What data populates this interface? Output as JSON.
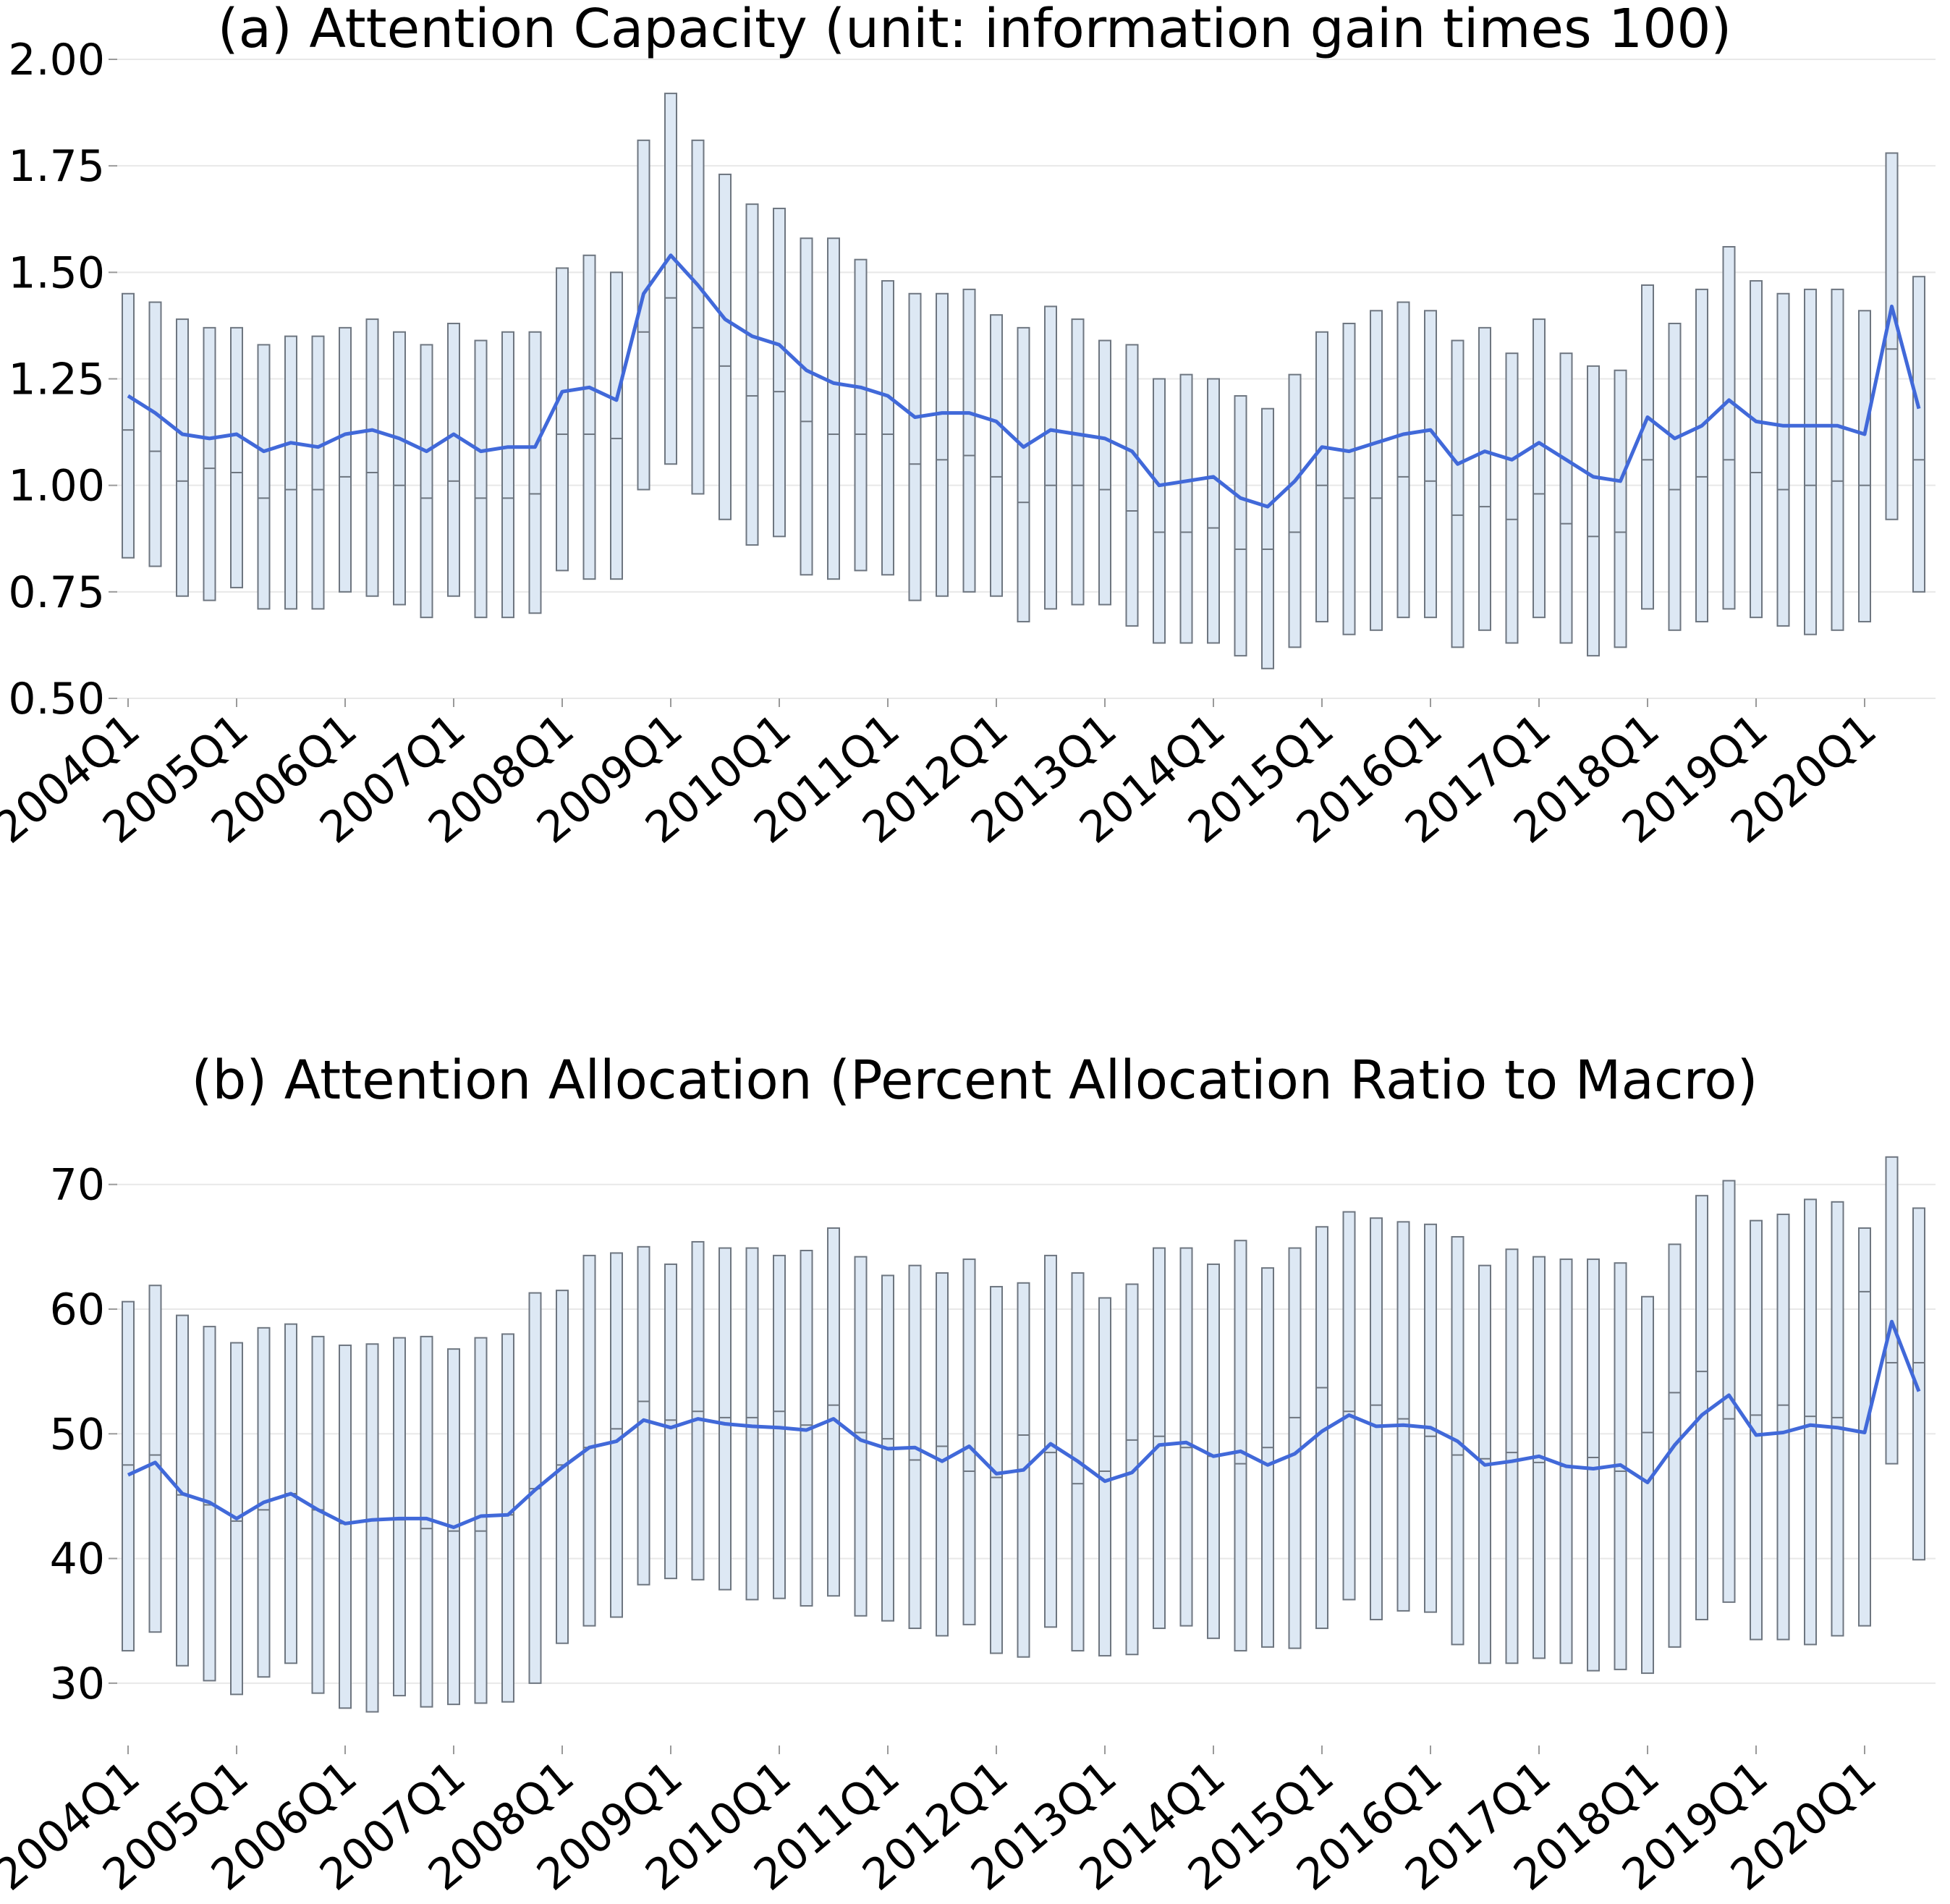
{
  "colors": {
    "mean_line": "#4169D9",
    "box_fill": "#DDE8F4",
    "box_edge": "#6E7680",
    "grid": "#E8E8E8",
    "tick": "#9A9A9A"
  },
  "chart_data": [
    {
      "type": "box",
      "title": "(a) Attention Capacity (unit: information gain times 100)",
      "xlabel": "",
      "ylabel": "",
      "ylim": [
        0.5,
        2.0
      ],
      "yticks": [
        0.5,
        0.75,
        1.0,
        1.25,
        1.5,
        1.75,
        2.0
      ],
      "ytick_labels": [
        "0.50",
        "0.75",
        "1.00",
        "1.25",
        "1.50",
        "1.75",
        "2.00"
      ],
      "xtick_labels": [
        "2004Q1",
        "2005Q1",
        "2006Q1",
        "2007Q1",
        "2008Q1",
        "2009Q1",
        "2010Q1",
        "2011Q1",
        "2012Q1",
        "2013Q1",
        "2014Q1",
        "2015Q1",
        "2016Q1",
        "2017Q1",
        "2018Q1",
        "2019Q1",
        "2020Q1"
      ],
      "quarters_per_label": 4,
      "grid": "horizontal",
      "box_low": [
        0.83,
        0.81,
        0.74,
        0.73,
        0.76,
        0.71,
        0.71,
        0.71,
        0.75,
        0.74,
        0.72,
        0.69,
        0.74,
        0.69,
        0.69,
        0.7,
        0.8,
        0.78,
        0.78,
        0.99,
        1.05,
        0.98,
        0.92,
        0.86,
        0.88,
        0.79,
        0.78,
        0.8,
        0.79,
        0.73,
        0.74,
        0.75,
        0.74,
        0.68,
        0.71,
        0.72,
        0.72,
        0.67,
        0.63,
        0.63,
        0.63,
        0.6,
        0.57,
        0.62,
        0.68,
        0.65,
        0.66,
        0.69,
        0.69,
        0.62,
        0.66,
        0.63,
        0.69,
        0.63,
        0.6,
        0.62,
        0.71,
        0.66,
        0.68,
        0.71,
        0.69,
        0.67,
        0.65,
        0.66,
        0.68,
        0.92,
        0.75
      ],
      "box_high": [
        1.45,
        1.43,
        1.39,
        1.37,
        1.37,
        1.33,
        1.35,
        1.35,
        1.37,
        1.39,
        1.36,
        1.33,
        1.38,
        1.34,
        1.36,
        1.36,
        1.51,
        1.54,
        1.5,
        1.81,
        1.92,
        1.81,
        1.73,
        1.66,
        1.65,
        1.58,
        1.58,
        1.53,
        1.48,
        1.45,
        1.45,
        1.46,
        1.4,
        1.37,
        1.42,
        1.39,
        1.34,
        1.33,
        1.25,
        1.26,
        1.25,
        1.21,
        1.18,
        1.26,
        1.36,
        1.38,
        1.41,
        1.43,
        1.41,
        1.34,
        1.37,
        1.31,
        1.39,
        1.31,
        1.28,
        1.27,
        1.47,
        1.38,
        1.46,
        1.56,
        1.48,
        1.45,
        1.46,
        1.46,
        1.41,
        1.78,
        1.49
      ],
      "median": [
        1.13,
        1.08,
        1.01,
        1.04,
        1.03,
        0.97,
        0.99,
        0.99,
        1.02,
        1.03,
        1.0,
        0.97,
        1.01,
        0.97,
        0.97,
        0.98,
        1.12,
        1.12,
        1.11,
        1.36,
        1.44,
        1.37,
        1.28,
        1.21,
        1.22,
        1.15,
        1.12,
        1.12,
        1.12,
        1.05,
        1.06,
        1.07,
        1.02,
        0.96,
        1.0,
        1.0,
        0.99,
        0.94,
        0.89,
        0.89,
        0.9,
        0.85,
        0.85,
        0.89,
        1.0,
        0.97,
        0.97,
        1.02,
        1.01,
        0.93,
        0.95,
        0.92,
        0.98,
        0.91,
        0.88,
        0.89,
        1.06,
        0.99,
        1.02,
        1.06,
        1.03,
        0.99,
        1.0,
        1.01,
        1.0,
        1.32,
        1.06
      ],
      "mean": [
        1.21,
        1.17,
        1.12,
        1.11,
        1.12,
        1.08,
        1.1,
        1.09,
        1.12,
        1.13,
        1.11,
        1.08,
        1.12,
        1.08,
        1.09,
        1.09,
        1.22,
        1.23,
        1.2,
        1.45,
        1.54,
        1.47,
        1.39,
        1.35,
        1.33,
        1.27,
        1.24,
        1.23,
        1.21,
        1.16,
        1.17,
        1.17,
        1.15,
        1.09,
        1.13,
        1.12,
        1.11,
        1.08,
        1.0,
        1.01,
        1.02,
        0.97,
        0.95,
        1.01,
        1.09,
        1.08,
        1.1,
        1.12,
        1.13,
        1.05,
        1.08,
        1.06,
        1.1,
        1.06,
        1.02,
        1.01,
        1.16,
        1.11,
        1.14,
        1.2,
        1.15,
        1.14,
        1.14,
        1.14,
        1.12,
        1.42,
        1.18
      ]
    },
    {
      "type": "box",
      "title": "(b) Attention Allocation (Percent Allocation Ratio to Macro)",
      "xlabel": "",
      "ylabel": "",
      "ylim": [
        25,
        73
      ],
      "yticks": [
        30,
        40,
        50,
        60,
        70
      ],
      "ytick_labels": [
        "30",
        "40",
        "50",
        "60",
        "70"
      ],
      "xtick_labels": [
        "2004Q1",
        "2005Q1",
        "2006Q1",
        "2007Q1",
        "2008Q1",
        "2009Q1",
        "2010Q1",
        "2011Q1",
        "2012Q1",
        "2013Q1",
        "2014Q1",
        "2015Q1",
        "2016Q1",
        "2017Q1",
        "2018Q1",
        "2019Q1",
        "2020Q1"
      ],
      "quarters_per_label": 4,
      "grid": "horizontal",
      "box_low": [
        32.6,
        34.1,
        31.4,
        30.2,
        29.1,
        30.5,
        31.6,
        29.2,
        28.0,
        27.7,
        29.0,
        28.1,
        28.3,
        28.4,
        28.5,
        30.0,
        33.2,
        34.6,
        35.3,
        37.9,
        38.4,
        38.3,
        37.5,
        36.7,
        36.8,
        36.2,
        37.0,
        35.4,
        35.0,
        34.4,
        33.8,
        34.7,
        32.4,
        32.1,
        34.5,
        32.6,
        32.2,
        32.3,
        34.4,
        34.6,
        33.6,
        32.6,
        32.9,
        32.8,
        34.4,
        36.7,
        35.1,
        35.8,
        35.7,
        33.1,
        31.6,
        31.6,
        32.0,
        31.6,
        31.0,
        31.1,
        30.8,
        32.9,
        35.1,
        36.5,
        33.5,
        33.5,
        33.1,
        33.8,
        34.6,
        47.6,
        39.9
      ],
      "box_high": [
        60.6,
        61.9,
        59.5,
        58.6,
        57.3,
        58.5,
        58.8,
        57.8,
        57.1,
        57.2,
        57.7,
        57.8,
        56.8,
        57.7,
        58.0,
        61.3,
        61.5,
        64.3,
        64.5,
        65.0,
        63.6,
        65.4,
        64.9,
        64.9,
        64.3,
        64.7,
        66.5,
        64.2,
        62.7,
        63.5,
        62.9,
        64.0,
        61.8,
        62.1,
        64.3,
        62.9,
        60.9,
        62.0,
        64.9,
        64.9,
        63.6,
        65.5,
        63.3,
        64.9,
        66.6,
        67.8,
        67.3,
        67.0,
        66.8,
        65.8,
        63.5,
        64.8,
        64.2,
        64.0,
        64.0,
        63.7,
        61.0,
        65.2,
        69.1,
        70.3,
        67.1,
        67.6,
        68.8,
        68.6,
        66.5,
        72.2,
        68.1
      ],
      "median": [
        47.5,
        48.3,
        45.1,
        44.3,
        43.0,
        43.9,
        45.2,
        43.9,
        42.8,
        43.1,
        43.1,
        42.4,
        42.2,
        42.2,
        43.5,
        45.6,
        47.5,
        48.9,
        50.4,
        52.6,
        51.1,
        51.8,
        51.3,
        51.3,
        51.8,
        50.7,
        52.3,
        50.1,
        49.6,
        47.9,
        49.0,
        47.0,
        46.5,
        49.9,
        48.5,
        46.0,
        47.0,
        49.5,
        49.8,
        48.9,
        48.2,
        47.6,
        48.9,
        51.3,
        53.7,
        51.8,
        52.3,
        51.2,
        49.8,
        48.3,
        48.0,
        48.5,
        47.7,
        47.4,
        48.1,
        47.0,
        50.1,
        53.3,
        55.0,
        51.2,
        51.5,
        52.3,
        51.4,
        51.3,
        61.4,
        55.7,
        55.7
      ],
      "mean": [
        46.7,
        47.7,
        45.2,
        44.5,
        43.2,
        44.5,
        45.2,
        43.9,
        42.8,
        43.1,
        43.2,
        43.2,
        42.5,
        43.4,
        43.5,
        45.5,
        47.3,
        48.9,
        49.4,
        51.1,
        50.5,
        51.2,
        50.8,
        50.6,
        50.5,
        50.3,
        51.2,
        49.5,
        48.8,
        48.9,
        47.8,
        49.0,
        46.8,
        47.1,
        49.2,
        47.8,
        46.2,
        46.9,
        49.1,
        49.3,
        48.2,
        48.6,
        47.5,
        48.4,
        50.2,
        51.5,
        50.6,
        50.7,
        50.5,
        49.4,
        47.5,
        47.8,
        48.2,
        47.4,
        47.2,
        47.5,
        46.1,
        49.1,
        51.5,
        53.1,
        49.9,
        50.1,
        50.7,
        50.5,
        50.1,
        59.0,
        53.4
      ]
    }
  ]
}
